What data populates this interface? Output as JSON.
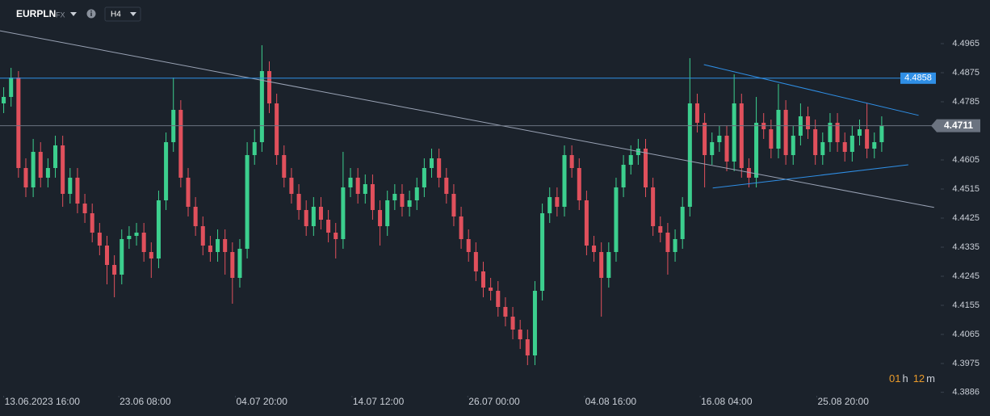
{
  "header": {
    "symbol": "EURPLN",
    "market": "FX",
    "timeframe": "H4"
  },
  "countdown": [
    "01",
    "h",
    "12",
    "m"
  ],
  "chart_data": {
    "type": "candlestick",
    "up_color": "#3ccf8e",
    "down_color": "#e0505c",
    "open": [
      4.478,
      4.48,
      4.486,
      4.458,
      4.452,
      4.463,
      4.455,
      4.458,
      4.465,
      4.45,
      4.455,
      4.447,
      4.444,
      4.438,
      4.434,
      4.428,
      4.425,
      4.436,
      4.437,
      4.438,
      4.432,
      4.43,
      4.448,
      4.466,
      4.476,
      4.455,
      4.446,
      4.44,
      4.434,
      4.432,
      4.436,
      4.432,
      4.424,
      4.433,
      4.462,
      4.466,
      4.488,
      4.478,
      4.462,
      4.455,
      4.45,
      4.445,
      4.44,
      4.446,
      4.442,
      4.438,
      4.436,
      4.452,
      4.455,
      4.45,
      4.453,
      4.445,
      4.44,
      4.448,
      4.45,
      4.446,
      4.448,
      4.452,
      4.458,
      4.461,
      4.455,
      4.45,
      4.443,
      4.436,
      4.432,
      4.426,
      4.421,
      4.42,
      4.415,
      4.412,
      4.408,
      4.405,
      4.4,
      4.42,
      4.444,
      4.449,
      4.446,
      4.462,
      4.458,
      4.448,
      4.434,
      4.432,
      4.424,
      4.432,
      4.452,
      4.459,
      4.462,
      4.464,
      4.452,
      4.44,
      4.438,
      4.432,
      4.436,
      4.446,
      4.478,
      4.472,
      4.462,
      4.466,
      4.468,
      4.46,
      4.478,
      4.458,
      4.455,
      4.472,
      4.47,
      4.464,
      4.476,
      4.462,
      4.468,
      4.474,
      4.47,
      4.462,
      4.466,
      4.472,
      4.466,
      4.463,
      4.468,
      4.47,
      4.464,
      4.466
    ],
    "high": [
      4.483,
      4.489,
      4.488,
      4.461,
      4.467,
      4.466,
      4.461,
      4.468,
      4.468,
      4.458,
      4.458,
      4.45,
      4.447,
      4.441,
      4.437,
      4.431,
      4.439,
      4.44,
      4.441,
      4.441,
      4.435,
      4.451,
      4.469,
      4.486,
      4.479,
      4.458,
      4.449,
      4.443,
      4.437,
      4.439,
      4.439,
      4.435,
      4.436,
      4.466,
      4.47,
      4.496,
      4.491,
      4.481,
      4.465,
      4.458,
      4.453,
      4.448,
      4.449,
      4.449,
      4.445,
      4.441,
      4.463,
      4.458,
      4.458,
      4.456,
      4.456,
      4.448,
      4.451,
      4.453,
      4.453,
      4.451,
      4.455,
      4.461,
      4.464,
      4.464,
      4.458,
      4.453,
      4.446,
      4.439,
      4.435,
      4.429,
      4.424,
      4.423,
      4.418,
      4.415,
      4.411,
      4.408,
      4.423,
      4.447,
      4.452,
      4.452,
      4.465,
      4.465,
      4.461,
      4.451,
      4.437,
      4.435,
      4.435,
      4.455,
      4.462,
      4.465,
      4.467,
      4.467,
      4.455,
      4.443,
      4.441,
      4.439,
      4.449,
      4.492,
      4.481,
      4.475,
      4.469,
      4.471,
      4.471,
      4.487,
      4.481,
      4.461,
      4.48,
      4.475,
      4.473,
      4.484,
      4.479,
      4.471,
      4.478,
      4.477,
      4.473,
      4.469,
      4.475,
      4.475,
      4.469,
      4.471,
      4.473,
      4.478,
      4.469,
      4.474
    ],
    "low": [
      4.475,
      4.477,
      4.455,
      4.449,
      4.449,
      4.452,
      4.452,
      4.455,
      4.446,
      4.447,
      4.444,
      4.441,
      4.435,
      4.431,
      4.422,
      4.418,
      4.422,
      4.433,
      4.434,
      4.429,
      4.424,
      4.427,
      4.445,
      4.463,
      4.452,
      4.443,
      4.437,
      4.431,
      4.429,
      4.429,
      4.425,
      4.416,
      4.421,
      4.43,
      4.459,
      4.463,
      4.475,
      4.459,
      4.452,
      4.447,
      4.442,
      4.437,
      4.437,
      4.439,
      4.435,
      4.43,
      4.433,
      4.449,
      4.447,
      4.447,
      4.442,
      4.434,
      4.437,
      4.445,
      4.443,
      4.443,
      4.445,
      4.449,
      4.455,
      4.452,
      4.447,
      4.44,
      4.433,
      4.429,
      4.423,
      4.418,
      4.417,
      4.412,
      4.409,
      4.405,
      4.402,
      4.397,
      4.397,
      4.417,
      4.441,
      4.443,
      4.443,
      4.455,
      4.445,
      4.431,
      4.429,
      4.412,
      4.421,
      4.429,
      4.449,
      4.456,
      4.459,
      4.449,
      4.437,
      4.435,
      4.425,
      4.429,
      4.433,
      4.443,
      4.469,
      4.452,
      4.459,
      4.463,
      4.457,
      4.457,
      4.455,
      4.452,
      4.452,
      4.467,
      4.461,
      4.461,
      4.459,
      4.459,
      4.465,
      4.467,
      4.459,
      4.459,
      4.463,
      4.463,
      4.46,
      4.46,
      4.465,
      4.461,
      4.461,
      4.463
    ],
    "close": [
      4.48,
      4.486,
      4.458,
      4.452,
      4.463,
      4.455,
      4.458,
      4.465,
      4.45,
      4.455,
      4.447,
      4.444,
      4.438,
      4.434,
      4.428,
      4.425,
      4.436,
      4.437,
      4.438,
      4.432,
      4.43,
      4.448,
      4.466,
      4.476,
      4.455,
      4.446,
      4.44,
      4.434,
      4.432,
      4.436,
      4.432,
      4.424,
      4.433,
      4.462,
      4.466,
      4.488,
      4.478,
      4.462,
      4.455,
      4.45,
      4.445,
      4.44,
      4.446,
      4.442,
      4.438,
      4.436,
      4.452,
      4.455,
      4.45,
      4.453,
      4.445,
      4.44,
      4.448,
      4.45,
      4.446,
      4.448,
      4.452,
      4.458,
      4.461,
      4.455,
      4.45,
      4.443,
      4.436,
      4.432,
      4.426,
      4.421,
      4.42,
      4.415,
      4.412,
      4.408,
      4.405,
      4.4,
      4.42,
      4.444,
      4.449,
      4.446,
      4.462,
      4.458,
      4.448,
      4.434,
      4.432,
      4.424,
      4.432,
      4.452,
      4.459,
      4.462,
      4.464,
      4.452,
      4.44,
      4.438,
      4.432,
      4.436,
      4.446,
      4.478,
      4.472,
      4.462,
      4.466,
      4.468,
      4.46,
      4.478,
      4.458,
      4.455,
      4.472,
      4.47,
      4.464,
      4.476,
      4.462,
      4.468,
      4.474,
      4.47,
      4.462,
      4.466,
      4.472,
      4.466,
      4.463,
      4.468,
      4.47,
      4.464,
      4.466,
      4.4711
    ],
    "xlim": [
      -0.5,
      127
    ],
    "ylim": [
      4.3875,
      4.51
    ],
    "yticks": [
      4.3886,
      4.3975,
      4.4065,
      4.4155,
      4.4245,
      4.4335,
      4.4425,
      4.4515,
      4.4605,
      4.4785,
      4.4875,
      4.4965
    ],
    "xticks": [
      {
        "value": 0,
        "label": "13.06.2023 16:00"
      },
      {
        "value": 15.6,
        "label": "23.06 08:00"
      },
      {
        "value": 31.4,
        "label": "04.07 20:00"
      },
      {
        "value": 47.2,
        "label": "14.07 12:00"
      },
      {
        "value": 62.9,
        "label": "26.07 00:00"
      },
      {
        "value": 78.7,
        "label": "04.08 16:00"
      },
      {
        "value": 94.4,
        "label": "16.08 04:00"
      },
      {
        "value": 110.2,
        "label": "25.08 20:00"
      }
    ],
    "trendlines": [
      {
        "color": "#9aa3b5",
        "x": [
          -0.55,
          126.1
        ],
        "y": [
          4.5005,
          4.4458
        ]
      },
      {
        "color": "#2f8fe6",
        "x": [
          94.9,
          124.0
        ],
        "y": [
          4.49,
          4.4743
        ]
      },
      {
        "color": "#2f8fe6",
        "x": [
          96.1,
          122.6
        ],
        "y": [
          4.4518,
          4.459
        ]
      }
    ],
    "horizontal_line": {
      "value": 4.4858,
      "color": "#2f8fe6"
    },
    "last_price": {
      "value": 4.4711,
      "color": "#6b7380"
    }
  }
}
